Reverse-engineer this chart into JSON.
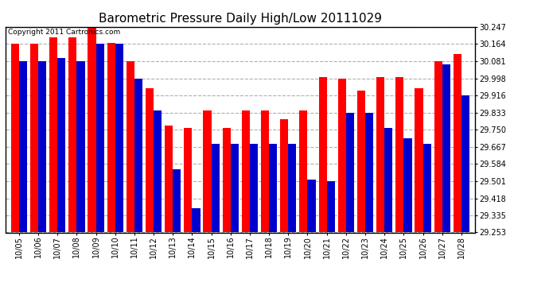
{
  "title": "Barometric Pressure Daily High/Low 20111029",
  "copyright": "Copyright 2011 Cartronics.com",
  "dates": [
    "10/05",
    "10/06",
    "10/07",
    "10/08",
    "10/09",
    "10/10",
    "10/11",
    "10/12",
    "10/13",
    "10/14",
    "10/15",
    "10/16",
    "10/17",
    "10/18",
    "10/19",
    "10/20",
    "10/21",
    "10/22",
    "10/23",
    "10/24",
    "10/25",
    "10/26",
    "10/27",
    "10/28"
  ],
  "highs": [
    30.164,
    30.164,
    30.198,
    30.198,
    30.247,
    30.171,
    30.081,
    29.95,
    29.77,
    29.76,
    29.843,
    29.76,
    29.843,
    29.843,
    29.8,
    29.843,
    30.005,
    29.998,
    29.94,
    30.005,
    30.005,
    29.95,
    30.081,
    30.115
  ],
  "lows": [
    30.081,
    30.081,
    30.098,
    30.081,
    30.164,
    30.164,
    29.998,
    29.843,
    29.56,
    29.37,
    29.68,
    29.68,
    29.68,
    29.68,
    29.68,
    29.51,
    29.5,
    29.833,
    29.833,
    29.76,
    29.71,
    29.68,
    30.064,
    29.916
  ],
  "high_color": "#ff0000",
  "low_color": "#0000cc",
  "background_color": "#ffffff",
  "plot_bg_color": "#ffffff",
  "grid_color": "#b0b0b0",
  "ymin": 29.253,
  "ymax": 30.247,
  "yticks": [
    29.253,
    29.335,
    29.418,
    29.501,
    29.584,
    29.667,
    29.75,
    29.833,
    29.916,
    29.998,
    30.081,
    30.164,
    30.247
  ],
  "title_fontsize": 11,
  "copyright_fontsize": 6.5,
  "tick_fontsize": 7
}
